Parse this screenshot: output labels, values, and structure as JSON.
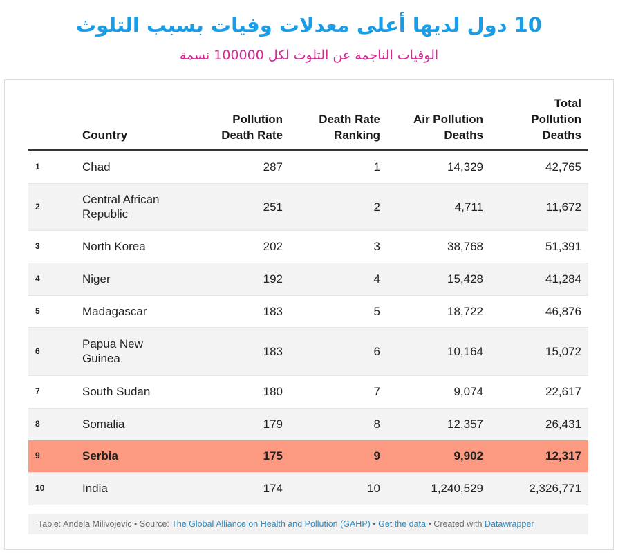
{
  "header": {
    "title": "10 دول لديها أعلى معدلات وفيات بسبب التلوث",
    "subtitle": "الوفيات الناجمة عن التلوث لكل 100000 نسمة",
    "title_color": "#1a9ce6",
    "subtitle_color": "#d8269a"
  },
  "table": {
    "columns": [
      "",
      "Country",
      "Pollution Death Rate",
      "Death Rate Ranking",
      "Air Pollution Deaths",
      "Total Pollution Deaths"
    ],
    "highlight_color": "#fb9a80",
    "highlight_row": 9
  },
  "chart_data": {
    "type": "table",
    "columns": [
      "",
      "Country",
      "Pollution Death Rate",
      "Death Rate Ranking",
      "Air Pollution Deaths",
      "Total Pollution Deaths"
    ],
    "rows": [
      [
        "1",
        "Chad",
        "287",
        "1",
        "14,329",
        "42,765"
      ],
      [
        "2",
        "Central African Republic",
        "251",
        "2",
        "4,711",
        "11,672"
      ],
      [
        "3",
        "North Korea",
        "202",
        "3",
        "38,768",
        "51,391"
      ],
      [
        "4",
        "Niger",
        "192",
        "4",
        "15,428",
        "41,284"
      ],
      [
        "5",
        "Madagascar",
        "183",
        "5",
        "18,722",
        "46,876"
      ],
      [
        "6",
        "Papua New Guinea",
        "183",
        "6",
        "10,164",
        "15,072"
      ],
      [
        "7",
        "South Sudan",
        "180",
        "7",
        "9,074",
        "22,617"
      ],
      [
        "8",
        "Somalia",
        "179",
        "8",
        "12,357",
        "26,431"
      ],
      [
        "9",
        "Serbia",
        "175",
        "9",
        "9,902",
        "12,317"
      ],
      [
        "10",
        "India",
        "174",
        "10",
        "1,240,529",
        "2,326,771"
      ]
    ],
    "title": "10 دول لديها أعلى معدلات وفيات بسبب التلوث",
    "subtitle": "الوفيات الناجمة عن التلوث لكل 100000 نسمة"
  },
  "footer": {
    "table_by": "Table: Andela Milivojevic",
    "sep1": " • Source: ",
    "source_link": "The Global Alliance on Health and Pollution (GAHP)",
    "sep2": " • ",
    "get_data": "Get the data",
    "sep3": " • Created with ",
    "tool": "Datawrapper"
  }
}
